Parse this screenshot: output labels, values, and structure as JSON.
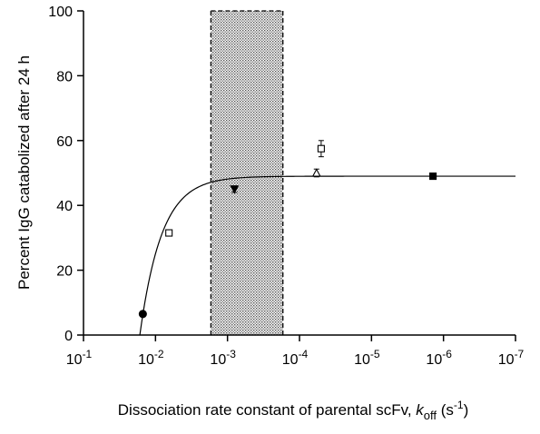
{
  "chart_data": {
    "type": "scatter",
    "title": "",
    "xlabel": {
      "prefix": "Dissociation rate constant of parental scFv, ",
      "k": "k",
      "k_sub": "off",
      "unit_open": " (s",
      "unit_exp": "-1",
      "unit_close": ")"
    },
    "ylabel": "Percent IgG catabolized after 24 h",
    "x_scale": "log",
    "x_reversed": true,
    "xlim": [
      0.1,
      1e-07
    ],
    "ylim": [
      0,
      100
    ],
    "x_ticks": [
      {
        "base": "10",
        "exp": "-1",
        "value": 0.1
      },
      {
        "base": "10",
        "exp": "-2",
        "value": 0.01
      },
      {
        "base": "10",
        "exp": "-3",
        "value": 0.001
      },
      {
        "base": "10",
        "exp": "-4",
        "value": 0.0001
      },
      {
        "base": "10",
        "exp": "-5",
        "value": 1e-05
      },
      {
        "base": "10",
        "exp": "-6",
        "value": 1e-06
      },
      {
        "base": "10",
        "exp": "-7",
        "value": 1e-07
      }
    ],
    "y_ticks": [
      "0",
      "20",
      "40",
      "60",
      "80",
      "100"
    ],
    "shaded_region": {
      "x_from": 0.0017,
      "x_to": 0.00017,
      "pattern": "dotted",
      "border": "dashed"
    },
    "points": [
      {
        "x": 0.015,
        "y": 6.5,
        "err": 0.8,
        "marker": "circle",
        "filled": true
      },
      {
        "x": 0.0065,
        "y": 31.5,
        "err": 0.8,
        "marker": "square",
        "filled": false
      },
      {
        "x": 0.0008,
        "y": 45.0,
        "err": 1.0,
        "marker": "triangle-down",
        "filled": true
      },
      {
        "x": 5.8e-05,
        "y": 50.0,
        "err": 1.2,
        "marker": "triangle-up",
        "filled": false
      },
      {
        "x": 5e-05,
        "y": 57.5,
        "err": 2.5,
        "marker": "square",
        "filled": false
      },
      {
        "x": 1.4e-06,
        "y": 49.0,
        "err": 0.8,
        "marker": "square",
        "filled": true
      }
    ],
    "fit_curve": {
      "plateau": 49,
      "x_zero": 0.0165,
      "rate": 3.3
    },
    "colors": {
      "line": "#000000",
      "shade": "#bdbdbd",
      "background": "#ffffff"
    }
  }
}
